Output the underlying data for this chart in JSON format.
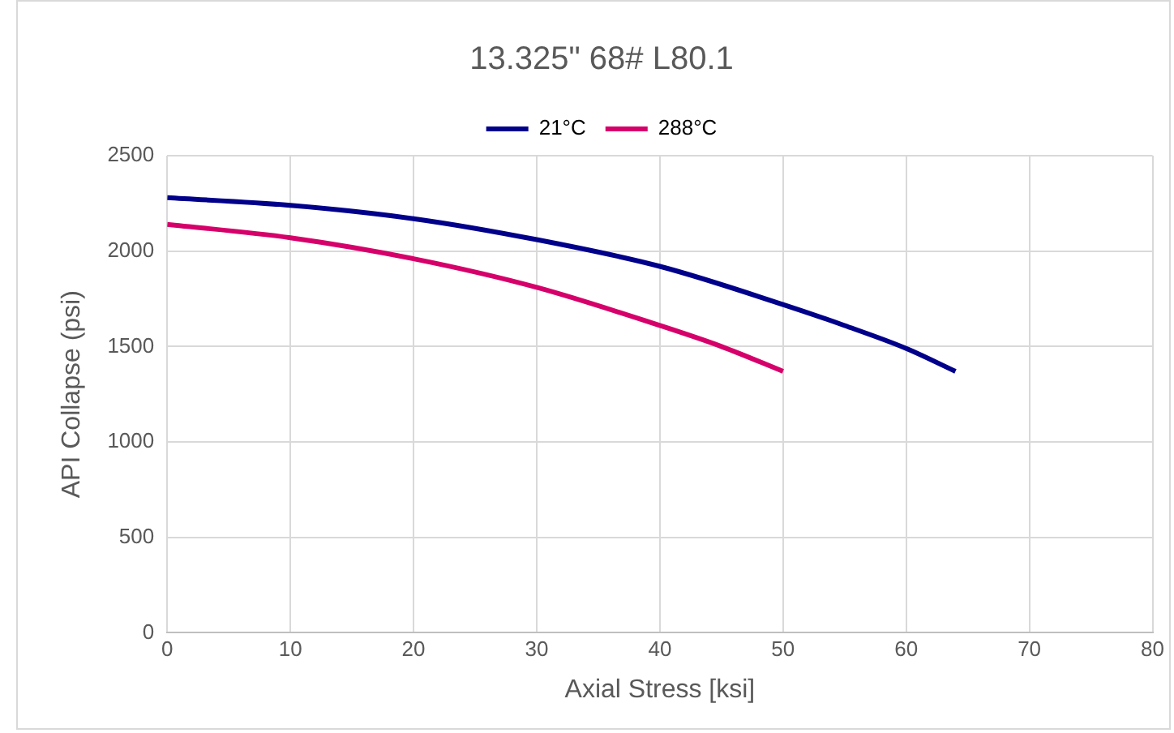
{
  "chart_data": {
    "type": "line",
    "title": "13.325\" 68# L80.1",
    "xlabel": "Axial Stress [ksi]",
    "ylabel": "API Collapse (psi)",
    "xlim": [
      0,
      80
    ],
    "xticks": [
      0,
      10,
      20,
      30,
      40,
      50,
      60,
      70,
      80
    ],
    "ylim": [
      0,
      2500
    ],
    "yticks": [
      0,
      500,
      1000,
      1500,
      2000,
      2500
    ],
    "grid": true,
    "legend": "top",
    "marker": "none",
    "line_style": "solid",
    "series": [
      {
        "name": "21°C",
        "color": "#00008b",
        "x": [
          0,
          10,
          20,
          30,
          40,
          50,
          55,
          60,
          64
        ],
        "values": [
          2280,
          2240,
          2170,
          2060,
          1920,
          1720,
          1610,
          1490,
          1370
        ]
      },
      {
        "name": "288°C",
        "color": "#d6006b",
        "x": [
          0,
          10,
          20,
          30,
          40,
          45,
          50
        ],
        "values": [
          2140,
          2070,
          1960,
          1810,
          1610,
          1500,
          1370
        ]
      }
    ]
  }
}
